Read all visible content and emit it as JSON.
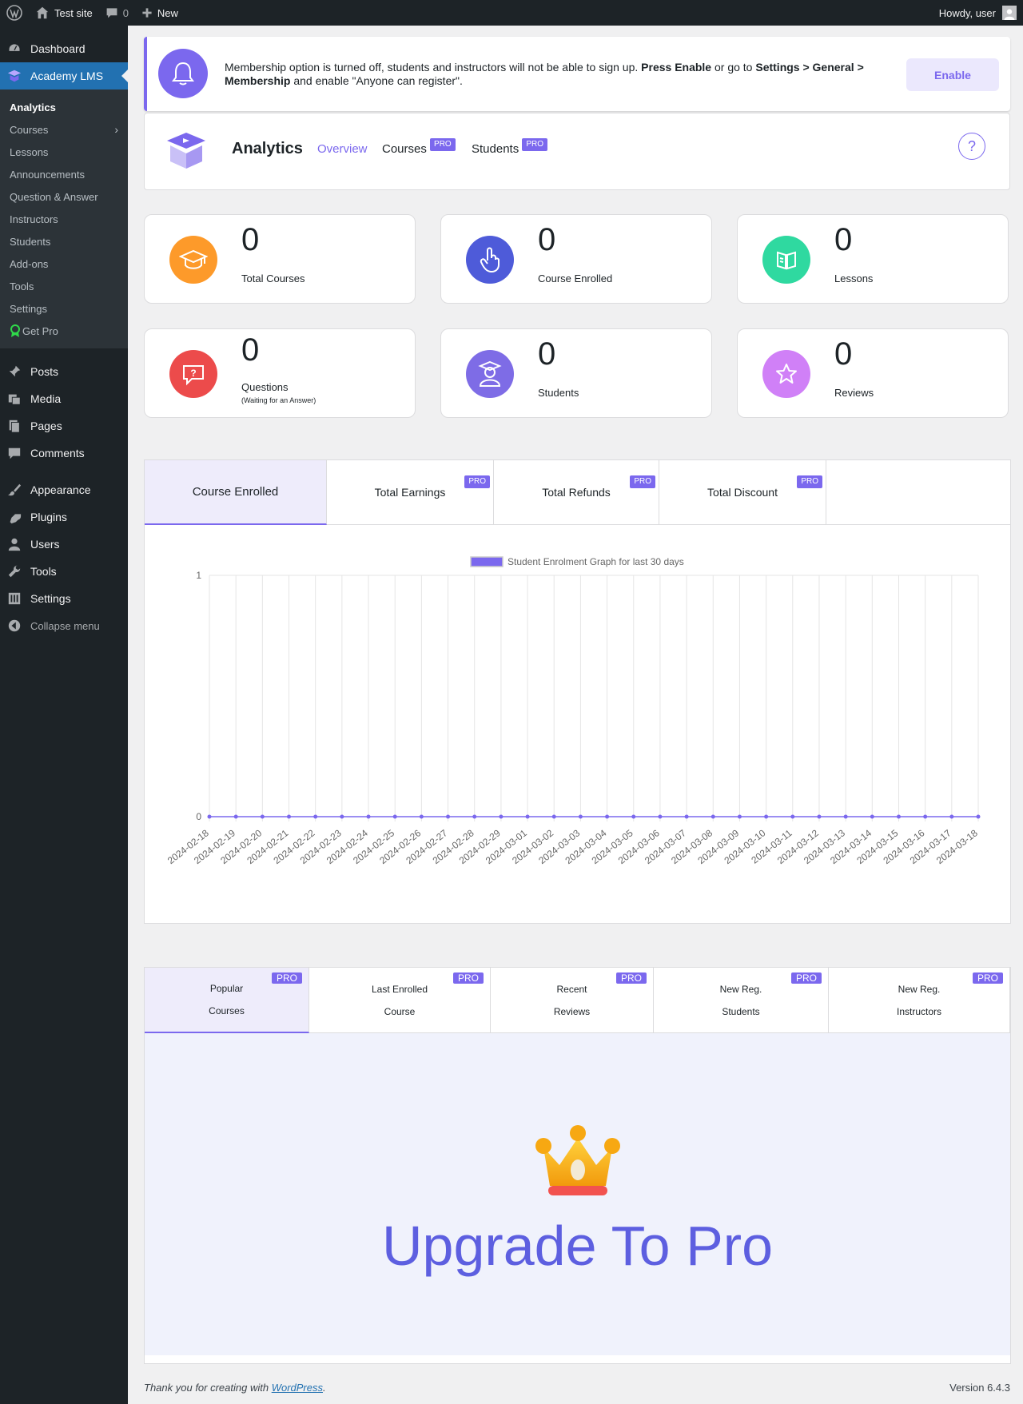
{
  "admin_bar": {
    "site_name": "Test site",
    "comments_count": "0",
    "new_label": "New",
    "howdy": "Howdy, user"
  },
  "sidebar": {
    "top_items": [
      {
        "label": "Dashboard",
        "icon": "dashboard-icon"
      },
      {
        "label": "Academy LMS",
        "icon": "academy-icon"
      }
    ],
    "submenu": [
      "Analytics",
      "Courses",
      "Lessons",
      "Announcements",
      "Question & Answer",
      "Instructors",
      "Students",
      "Add-ons",
      "Tools",
      "Settings",
      "Get Pro"
    ],
    "bottom_items": [
      {
        "label": "Posts",
        "icon": "pin-icon"
      },
      {
        "label": "Media",
        "icon": "media-icon"
      },
      {
        "label": "Pages",
        "icon": "pages-icon"
      },
      {
        "label": "Comments",
        "icon": "comments-icon"
      },
      {
        "label": "Appearance",
        "icon": "brush-icon"
      },
      {
        "label": "Plugins",
        "icon": "plug-icon"
      },
      {
        "label": "Users",
        "icon": "user-icon"
      },
      {
        "label": "Tools",
        "icon": "wrench-icon"
      },
      {
        "label": "Settings",
        "icon": "settings-icon"
      }
    ],
    "collapse_label": "Collapse menu"
  },
  "notice": {
    "text_1": "Membership option is turned off, students and instructors will not be able to sign up. ",
    "bold_1": "Press Enable",
    "text_2": " or go to ",
    "bold_2": "Settings > General > Membership",
    "text_3": " and enable \"Anyone can register\".",
    "button": "Enable"
  },
  "header": {
    "title": "Analytics",
    "tabs": [
      {
        "label": "Overview",
        "pro": ""
      },
      {
        "label": "Courses",
        "pro": "PRO"
      },
      {
        "label": "Students",
        "pro": "PRO"
      }
    ],
    "help": "?"
  },
  "stats": [
    {
      "value": "0",
      "label": "Total Courses",
      "color": "#fd9a2a"
    },
    {
      "value": "0",
      "label": "Course Enrolled",
      "color": "#4e5bd9"
    },
    {
      "value": "0",
      "label": "Lessons",
      "color": "#2fd9a0"
    },
    {
      "value": "0",
      "label": "Questions",
      "sublabel": "(Waiting for an Answer)",
      "color": "#ec4b4b"
    },
    {
      "value": "0",
      "label": "Students",
      "color": "#7e6ce6"
    },
    {
      "value": "0",
      "label": "Reviews",
      "color": "#d080f7"
    }
  ],
  "chart_tabs": [
    {
      "label": "Course Enrolled",
      "pro": ""
    },
    {
      "label": "Total Earnings",
      "pro": "PRO"
    },
    {
      "label": "Total Refunds",
      "pro": "PRO"
    },
    {
      "label": "Total Discount",
      "pro": "PRO"
    }
  ],
  "chart_data": {
    "type": "line",
    "series": [
      {
        "name": "Student Enrolment Graph for last 30 days",
        "values": [
          0,
          0,
          0,
          0,
          0,
          0,
          0,
          0,
          0,
          0,
          0,
          0,
          0,
          0,
          0,
          0,
          0,
          0,
          0,
          0,
          0,
          0,
          0,
          0,
          0,
          0,
          0,
          0,
          0,
          0
        ]
      }
    ],
    "x": [
      "2024-02-18",
      "2024-02-19",
      "2024-02-20",
      "2024-02-21",
      "2024-02-22",
      "2024-02-23",
      "2024-02-24",
      "2024-02-25",
      "2024-02-26",
      "2024-02-27",
      "2024-02-28",
      "2024-02-29",
      "2024-03-01",
      "2024-03-02",
      "2024-03-03",
      "2024-03-04",
      "2024-03-05",
      "2024-03-06",
      "2024-03-07",
      "2024-03-08",
      "2024-03-09",
      "2024-03-10",
      "2024-03-11",
      "2024-03-12",
      "2024-03-13",
      "2024-03-14",
      "2024-03-15",
      "2024-03-16",
      "2024-03-17",
      "2024-03-18"
    ],
    "y_ticks": [
      "1",
      "0"
    ],
    "ylim": [
      0,
      1
    ],
    "color": "#7b68ee",
    "legend": "top",
    "grid": true
  },
  "lower_tabs": [
    {
      "line1": "Popular",
      "line2": "Courses",
      "pro": "PRO"
    },
    {
      "line1": "Last Enrolled",
      "line2": "Course",
      "pro": "PRO"
    },
    {
      "line1": "Recent",
      "line2": "Reviews",
      "pro": "PRO"
    },
    {
      "line1": "New Reg.",
      "line2": "Students",
      "pro": "PRO"
    },
    {
      "line1": "New Reg.",
      "line2": "Instructors",
      "pro": "PRO"
    }
  ],
  "upgrade": {
    "title": "Upgrade To Pro"
  },
  "footer": {
    "text": "Thank you for creating with ",
    "link": "WordPress",
    "period": ".",
    "version": "Version 6.4.3"
  }
}
